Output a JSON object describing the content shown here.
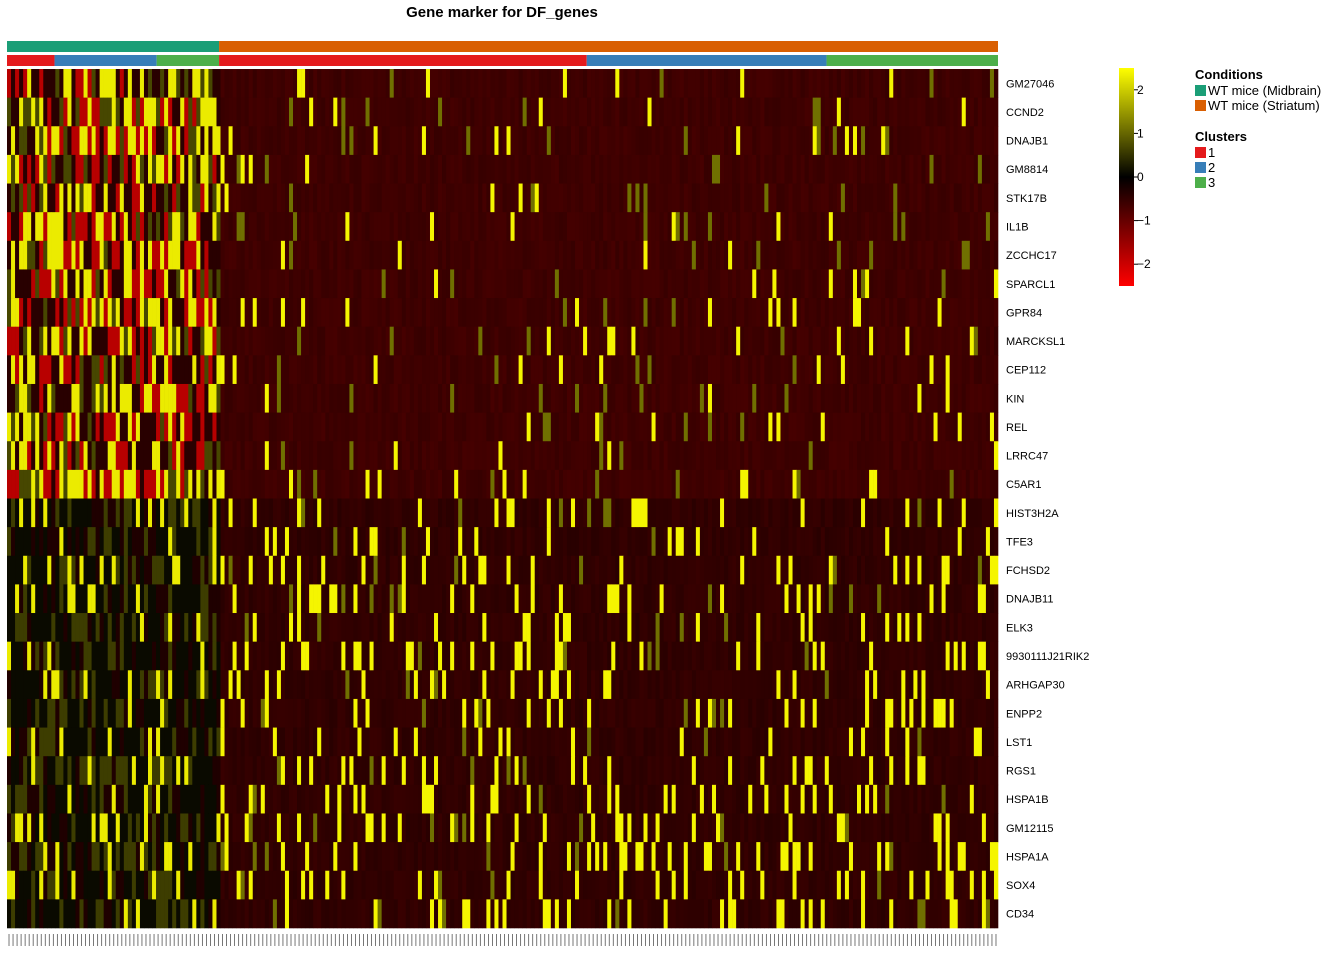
{
  "chart_data": {
    "type": "heatmap",
    "title": "Gene marker for  DF_genes",
    "genes": [
      "GM27046",
      "CCND2",
      "DNAJB1",
      "GM8814",
      "STK17B",
      "IL1B",
      "ZCCHC17",
      "SPARCL1",
      "GPR84",
      "MARCKSL1",
      "CEP112",
      "KIN",
      "REL",
      "LRRC47",
      "C5AR1",
      "HIST3H2A",
      "TFE3",
      "FCHSD2",
      "DNAJB11",
      "ELK3",
      "9930111J21RIK2",
      "ARHGAP30",
      "ENPP2",
      "LST1",
      "RGS1",
      "HSPA1B",
      "GM12115",
      "HSPA1A",
      "SOX4",
      "CD34"
    ],
    "condition_annotation": {
      "title": "Conditions",
      "levels": [
        {
          "label": "WT mice (Midbrain)",
          "color": "#1b9e77",
          "fraction": 0.214
        },
        {
          "label": "WT mice (Striatum)",
          "color": "#d95f02",
          "fraction": 0.786
        }
      ]
    },
    "cluster_annotation": {
      "title": "Clusters",
      "segments": [
        {
          "cluster": "1",
          "fraction": 0.048
        },
        {
          "cluster": "2",
          "fraction": 0.103
        },
        {
          "cluster": "3",
          "fraction": 0.063
        },
        {
          "cluster": "1",
          "fraction": 0.371
        },
        {
          "cluster": "2",
          "fraction": 0.242
        },
        {
          "cluster": "3",
          "fraction": 0.173
        }
      ],
      "levels": [
        {
          "label": "1",
          "color": "#e41a1c"
        },
        {
          "label": "2",
          "color": "#377eb8"
        },
        {
          "label": "3",
          "color": "#4daf4a"
        }
      ]
    },
    "color_scale": {
      "ticks": [
        2,
        1,
        0,
        -1,
        -2
      ],
      "tick_labels": [
        "2",
        "1",
        "0",
        "−1",
        "−2"
      ],
      "range": [
        -2.5,
        2.5
      ],
      "colors": [
        "#ff0000",
        "#000000",
        "#ffff00"
      ]
    }
  }
}
